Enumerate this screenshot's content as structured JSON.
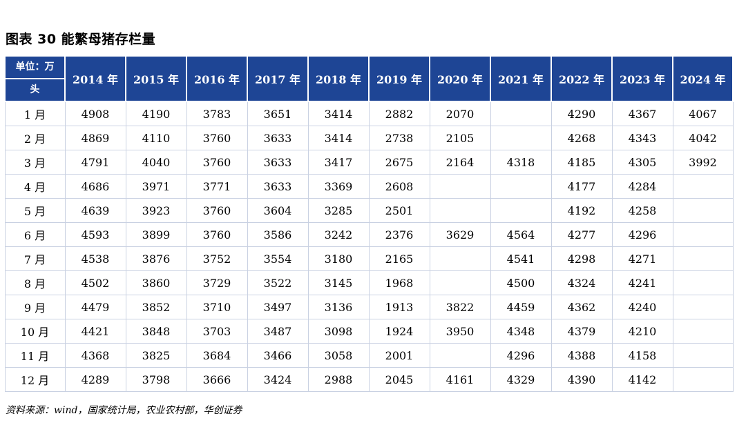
{
  "title": "图表 30    能繁母猪存栏量",
  "header": {
    "corner_line1": "单位：万",
    "corner_line2": "头",
    "years": [
      "2014 年",
      "2015 年",
      "2016 年",
      "2017 年",
      "2018 年",
      "2019 年",
      "2020 年",
      "2021 年",
      "2022 年",
      "2023 年",
      "2024 年"
    ]
  },
  "rows": [
    {
      "month": "1 月",
      "values": [
        "4908",
        "4190",
        "3783",
        "3651",
        "3414",
        "2882",
        "2070",
        "",
        "4290",
        "4367",
        "4067"
      ]
    },
    {
      "month": "2 月",
      "values": [
        "4869",
        "4110",
        "3760",
        "3633",
        "3414",
        "2738",
        "2105",
        "",
        "4268",
        "4343",
        "4042"
      ]
    },
    {
      "month": "3 月",
      "values": [
        "4791",
        "4040",
        "3760",
        "3633",
        "3417",
        "2675",
        "2164",
        "4318",
        "4185",
        "4305",
        "3992"
      ]
    },
    {
      "month": "4 月",
      "values": [
        "4686",
        "3971",
        "3771",
        "3633",
        "3369",
        "2608",
        "",
        "",
        "4177",
        "4284",
        ""
      ]
    },
    {
      "month": "5 月",
      "values": [
        "4639",
        "3923",
        "3760",
        "3604",
        "3285",
        "2501",
        "",
        "",
        "4192",
        "4258",
        ""
      ]
    },
    {
      "month": "6 月",
      "values": [
        "4593",
        "3899",
        "3760",
        "3586",
        "3242",
        "2376",
        "3629",
        "4564",
        "4277",
        "4296",
        ""
      ]
    },
    {
      "month": "7 月",
      "values": [
        "4538",
        "3876",
        "3752",
        "3554",
        "3180",
        "2165",
        "",
        "4541",
        "4298",
        "4271",
        ""
      ]
    },
    {
      "month": "8 月",
      "values": [
        "4502",
        "3860",
        "3729",
        "3522",
        "3145",
        "1968",
        "",
        "4500",
        "4324",
        "4241",
        ""
      ]
    },
    {
      "month": "9 月",
      "values": [
        "4479",
        "3852",
        "3710",
        "3497",
        "3136",
        "1913",
        "3822",
        "4459",
        "4362",
        "4240",
        ""
      ]
    },
    {
      "month": "10 月",
      "values": [
        "4421",
        "3848",
        "3703",
        "3487",
        "3098",
        "1924",
        "3950",
        "4348",
        "4379",
        "4210",
        ""
      ]
    },
    {
      "month": "11 月",
      "values": [
        "4368",
        "3825",
        "3684",
        "3466",
        "3058",
        "2001",
        "",
        "4296",
        "4388",
        "4158",
        ""
      ]
    },
    {
      "month": "12 月",
      "values": [
        "4289",
        "3798",
        "3666",
        "3424",
        "2988",
        "2045",
        "4161",
        "4329",
        "4390",
        "4142",
        ""
      ]
    }
  ],
  "source": "资料来源：wind，国家统计局，农业农村部，华创证券",
  "colors": {
    "header_bg": "#1e4595",
    "header_text": "#ffffff",
    "grid": "#c9d1e2"
  }
}
